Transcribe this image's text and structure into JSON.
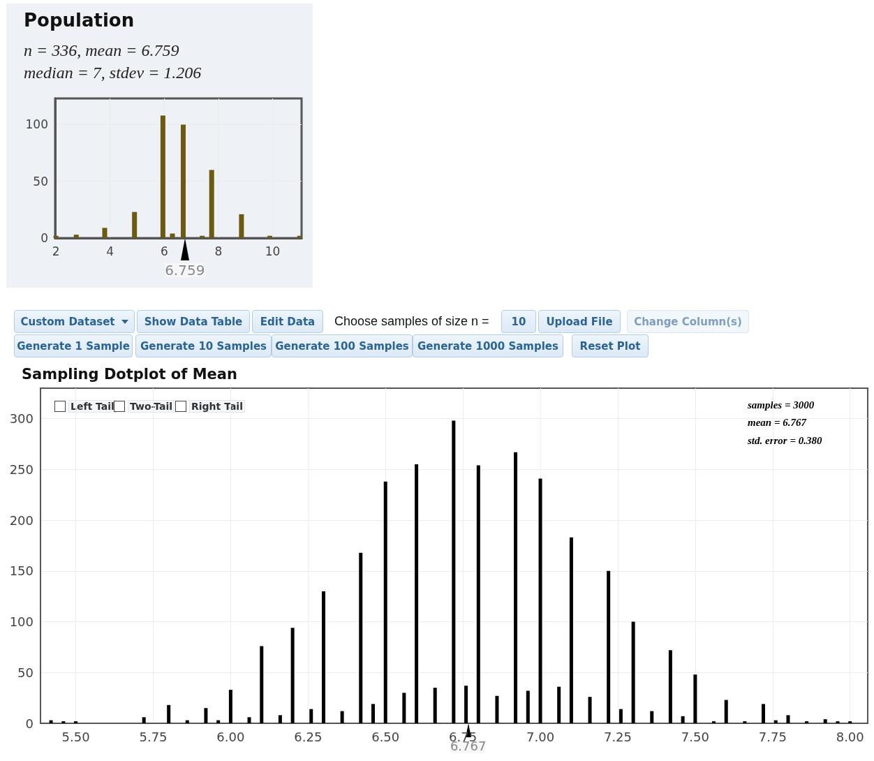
{
  "chart_data": [
    {
      "type": "bar",
      "title": "Population",
      "subtitle": "n = 336, mean = 6.759\nmedian = 7, stdev = 1.206",
      "x": [
        2,
        2.75,
        3.8,
        4.9,
        5.95,
        6.3,
        6.7,
        7.4,
        7.75,
        8.85,
        9.9,
        11
      ],
      "values": [
        2,
        3,
        9,
        23,
        108,
        4,
        100,
        2,
        60,
        21,
        2,
        2
      ],
      "color": "#6b5a10",
      "xlim": [
        1.97,
        11.07
      ],
      "ylim": [
        0,
        123
      ],
      "xticks": [
        2,
        4,
        6,
        8,
        10
      ],
      "yticks": [
        0,
        50,
        100
      ],
      "grid": true,
      "annotations": [
        {
          "text": "6.759",
          "x": 6.759,
          "y": 0
        }
      ]
    },
    {
      "type": "other",
      "annotations": [
        "Custom Dataset",
        "Show Data Table",
        "Edit Data",
        "Choose samples of size n =",
        "10",
        "Upload File",
        "Change Column(s)",
        "Generate 1 Sample",
        "Generate 10 Samples",
        "Generate 100 Samples",
        "Generate 1000 Samples",
        "Reset Plot"
      ]
    },
    {
      "type": "bar",
      "title": "Sampling Dotplot of Mean",
      "annotations": [
        "Left Tail",
        "Two-Tail",
        "Right Tail",
        "samples = 3000",
        "mean = 6.767",
        "std. error = 0.380",
        {
          "text": "6.767",
          "x": 6.767,
          "y": 0
        }
      ],
      "x": [
        5.42,
        5.46,
        5.5,
        5.72,
        5.8,
        5.86,
        5.92,
        5.96,
        6.0,
        6.06,
        6.1,
        6.16,
        6.2,
        6.26,
        6.3,
        6.36,
        6.42,
        6.46,
        6.5,
        6.56,
        6.6,
        6.66,
        6.72,
        6.76,
        6.8,
        6.86,
        6.92,
        6.96,
        7.0,
        7.06,
        7.1,
        7.16,
        7.22,
        7.26,
        7.3,
        7.36,
        7.42,
        7.46,
        7.5,
        7.56,
        7.6,
        7.66,
        7.72,
        7.76,
        7.8,
        7.86,
        7.92,
        7.96,
        8.0
      ],
      "values": [
        3,
        2,
        2,
        6,
        18,
        3,
        15,
        3,
        33,
        6,
        76,
        8,
        94,
        14,
        130,
        12,
        168,
        19,
        238,
        30,
        255,
        35,
        298,
        37,
        254,
        27,
        267,
        32,
        241,
        36,
        183,
        26,
        150,
        14,
        100,
        12,
        72,
        7,
        48,
        2,
        23,
        2,
        19,
        3,
        8,
        2,
        4,
        2,
        2
      ],
      "color": "#000000",
      "xlim": [
        5.386,
        8.057
      ],
      "ylim": [
        0,
        330
      ],
      "xticks": [
        {
          "value": 5.5,
          "label": "5.50"
        },
        {
          "value": 5.75,
          "label": "5.75"
        },
        {
          "value": 6,
          "label": "6.00"
        },
        {
          "value": 6.25,
          "label": "6.25"
        },
        {
          "value": 6.5,
          "label": "6.50"
        },
        {
          "value": 6.75,
          "label": "6.75"
        },
        {
          "value": 7,
          "label": "7.00"
        },
        {
          "value": 7.25,
          "label": "7.25"
        },
        {
          "value": 7.5,
          "label": "7.50"
        },
        {
          "value": 7.75,
          "label": "7.75"
        },
        {
          "value": 8,
          "label": "8.00"
        }
      ],
      "yticks": [
        0,
        50,
        100,
        150,
        200,
        250,
        300
      ],
      "grid": true
    }
  ]
}
